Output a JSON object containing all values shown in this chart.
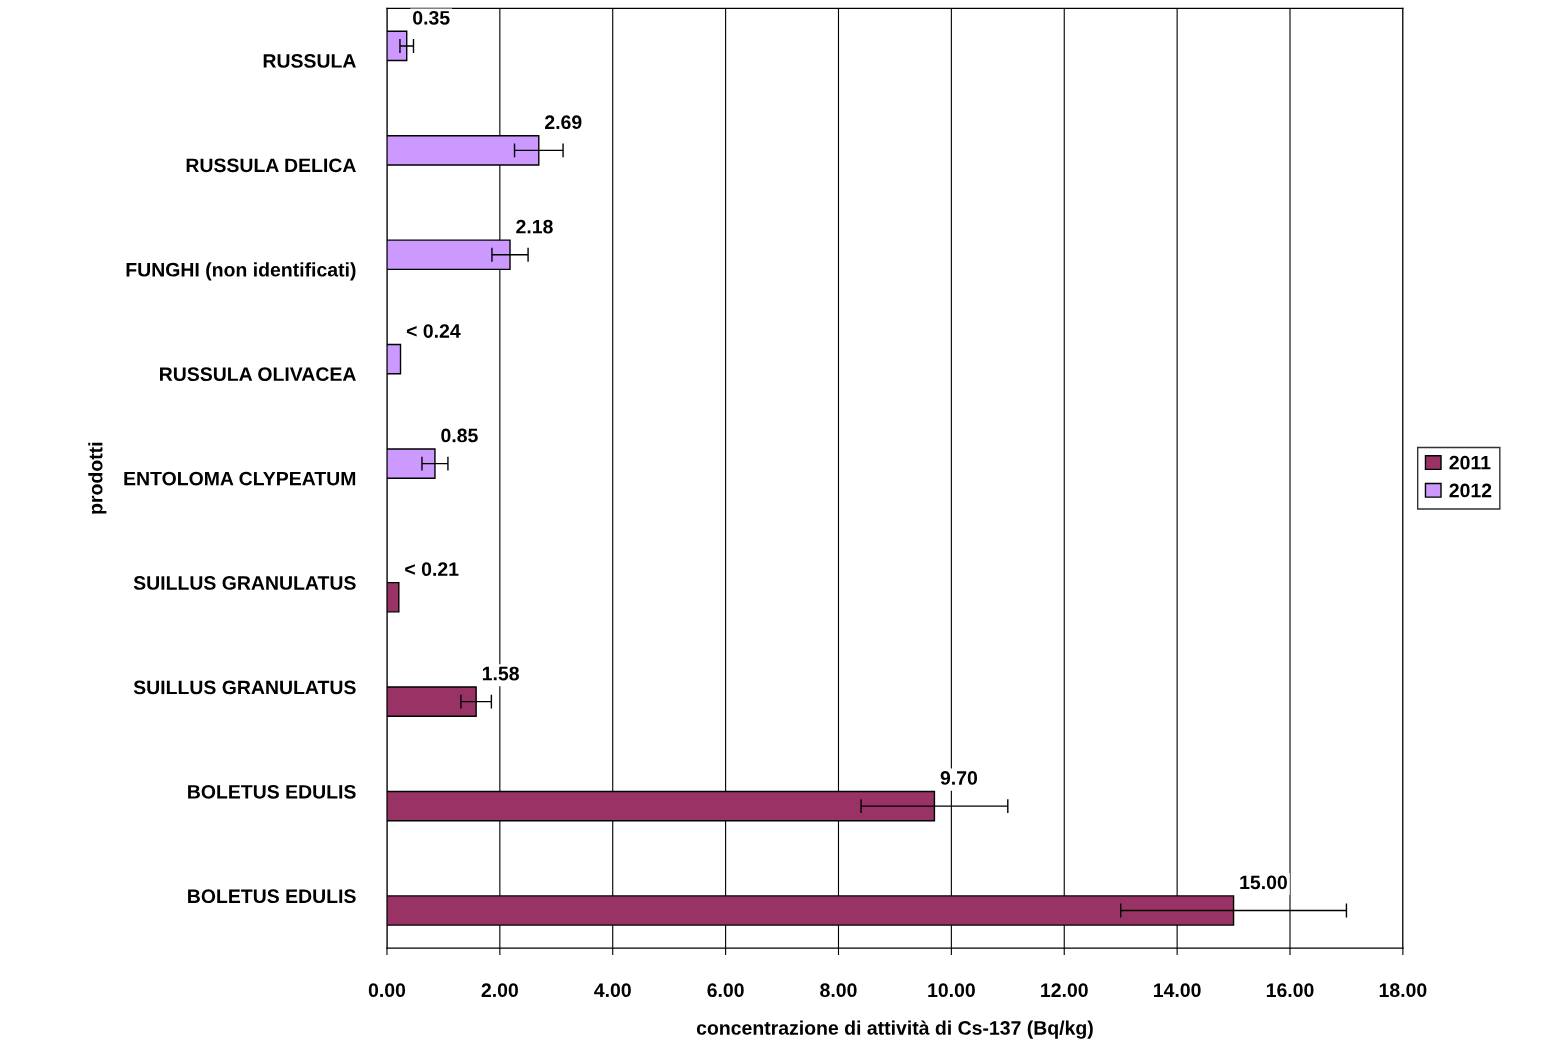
{
  "chart_data": {
    "type": "bar",
    "orientation": "horizontal",
    "categories": [
      "RUSSULA",
      "RUSSULA DELICA",
      "FUNGHI (non identificati)",
      "RUSSULA OLIVACEA",
      "ENTOLOMA CLYPEATUM",
      "SUILLUS GRANULATUS",
      "SUILLUS GRANULATUS",
      "BOLETUS EDULIS",
      "BOLETUS EDULIS"
    ],
    "series": [
      {
        "name": "2012",
        "color": "#cc99ff",
        "values": [
          0.35,
          2.69,
          2.18,
          0.24,
          0.85,
          null,
          null,
          null,
          null
        ],
        "errors": [
          0.12,
          0.43,
          0.32,
          null,
          0.23,
          null,
          null,
          null,
          null
        ],
        "value_labels": [
          "0.35",
          "2.69",
          "2.18",
          "< 0.24",
          "0.85",
          null,
          null,
          null,
          null
        ]
      },
      {
        "name": "2011",
        "color": "#993366",
        "values": [
          null,
          null,
          null,
          null,
          null,
          0.21,
          1.58,
          9.7,
          15.0
        ],
        "errors": [
          null,
          null,
          null,
          null,
          null,
          null,
          0.27,
          1.3,
          2.0
        ],
        "value_labels": [
          null,
          null,
          null,
          null,
          null,
          "< 0.21",
          "1.58",
          "9.70",
          "15.00"
        ]
      }
    ],
    "xlabel": "concentrazione di attività di Cs-137 (Bq/kg)",
    "ylabel": "prodotti",
    "xlim": [
      0,
      18
    ],
    "xticks": [
      {
        "value": 0,
        "label": "0.00"
      },
      {
        "value": 2,
        "label": "2.00"
      },
      {
        "value": 4,
        "label": "4.00"
      },
      {
        "value": 6,
        "label": "6.00"
      },
      {
        "value": 8,
        "label": "8.00"
      },
      {
        "value": 10,
        "label": "10.00"
      },
      {
        "value": 12,
        "label": "12.00"
      },
      {
        "value": 14,
        "label": "14.00"
      },
      {
        "value": 16,
        "label": "16.00"
      },
      {
        "value": 18,
        "label": "18.00"
      }
    ],
    "grid": "x",
    "legend": "right"
  }
}
